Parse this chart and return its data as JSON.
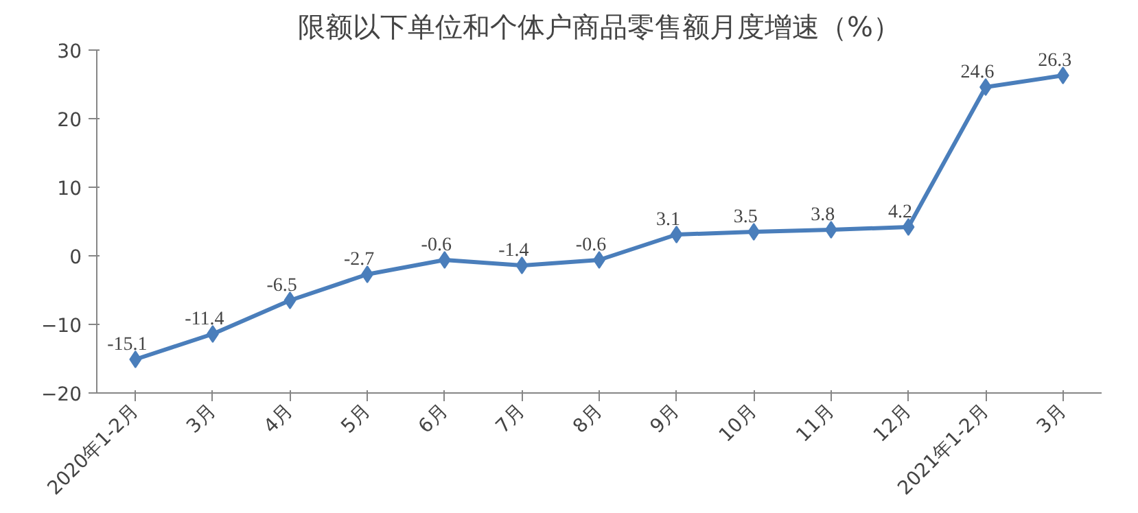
{
  "chart_data": {
    "type": "line",
    "title": "限额以下单位和个体户商品零售额月度增速（%）",
    "categories": [
      "2020年1-2月",
      "3月",
      "4月",
      "5月",
      "6月",
      "7月",
      "8月",
      "9月",
      "10月",
      "11月",
      "12月",
      "2021年1-2月",
      "3月"
    ],
    "series": [
      {
        "color": "#4a7ebb",
        "values": [
          -15.1,
          -11.4,
          -6.5,
          -2.7,
          -0.6,
          -1.4,
          -0.6,
          3.1,
          3.5,
          3.8,
          4.2,
          24.6,
          26.3
        ]
      }
    ],
    "ylim": [
      -20,
      30
    ],
    "yticks": [
      -20,
      -10,
      0,
      10,
      20,
      30
    ],
    "grid": false,
    "marker": "diamond",
    "line_style": "solid",
    "data_labels": true
  }
}
